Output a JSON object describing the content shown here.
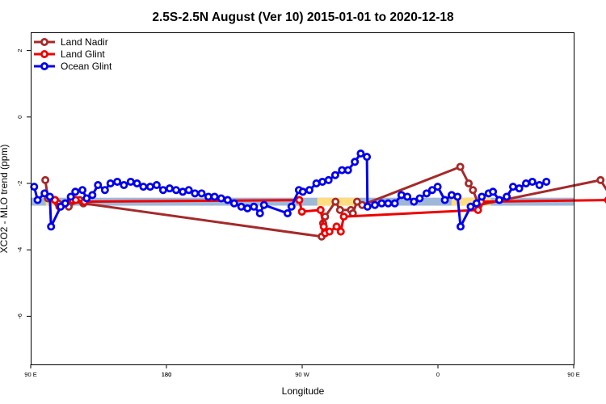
{
  "chart_data": {
    "type": "line",
    "title": "2.5S-2.5N August (Ver 10)   2015-01-01 to 2020-12-18",
    "xlabel": "Longitude",
    "ylabel": "XCO2 - MLO trend (ppm)",
    "xlim": [
      90,
      450
    ],
    "ylim": [
      -7.45,
      2.55
    ],
    "x_ticks": [
      {
        "value": 90,
        "label": "90 E"
      },
      {
        "value": 180,
        "label": "180"
      },
      {
        "value": 270,
        "label": "90 W"
      },
      {
        "value": 360,
        "label": "0"
      },
      {
        "value": 450,
        "label": "90 E"
      },
      {
        "value": 540,
        "label": "180"
      }
    ],
    "y_ticks": [
      {
        "value": 2,
        "label": "2"
      },
      {
        "value": 0,
        "label": "0"
      },
      {
        "value": -2,
        "label": "-2"
      },
      {
        "value": -4,
        "label": "-4"
      },
      {
        "value": -6,
        "label": "-6"
      }
    ],
    "grid": false,
    "legend_position": "top-left",
    "colors": {
      "land_band": "#ffdd80",
      "ocean_band": "#a0b8d8"
    },
    "band": {
      "y_center": -2.55,
      "y_half_height": 0.12
    },
    "land_segments": [
      [
        100,
        106
      ],
      [
        280,
        306
      ],
      [
        369,
        395
      ],
      [
        463,
        469
      ],
      [
        478,
        495
      ]
    ],
    "series": [
      {
        "name": "Land Nadir",
        "color": "#a52a2a",
        "points": [
          [
            99.7,
            -1.9
          ],
          [
            101.4,
            -2.45
          ],
          [
            106.1,
            -2.5
          ],
          [
            108.2,
            -2.6
          ],
          [
            115.2,
            -2.7
          ],
          [
            122.5,
            -2.5
          ],
          [
            124.9,
            -2.6
          ],
          [
            282.9,
            -3.6
          ],
          [
            283.9,
            -3.2
          ],
          [
            285.2,
            -3.0
          ],
          [
            292.1,
            -2.55
          ],
          [
            295.1,
            -2.8
          ],
          [
            302.3,
            -2.8
          ],
          [
            303.6,
            -2.9
          ],
          [
            306.4,
            -2.55
          ],
          [
            309.8,
            -2.65
          ],
          [
            374.8,
            -1.5
          ],
          [
            380.4,
            -2.0
          ],
          [
            383.2,
            -2.2
          ],
          [
            387.1,
            -2.65
          ],
          [
            467.8,
            -1.9
          ],
          [
            478.3,
            -2.65
          ],
          [
            482.9,
            -2.75
          ],
          [
            485.3,
            -2.5
          ],
          [
            490.2,
            -2.55
          ]
        ]
      },
      {
        "name": "Land Glint",
        "color": "#ee0000",
        "points": [
          [
            106.1,
            -2.5
          ],
          [
            109.0,
            -2.7
          ],
          [
            117.6,
            -2.5
          ],
          [
            119.9,
            -2.5
          ],
          [
            125.6,
            -2.55
          ],
          [
            268.1,
            -2.5
          ],
          [
            269.8,
            -2.85
          ],
          [
            282.2,
            -2.8
          ],
          [
            284.3,
            -3.3
          ],
          [
            285.2,
            -3.5
          ],
          [
            288.1,
            -3.45
          ],
          [
            292.8,
            -3.3
          ],
          [
            295.6,
            -3.45
          ],
          [
            297.6,
            -3.0
          ],
          [
            386.6,
            -2.8
          ],
          [
            388.6,
            -2.55
          ],
          [
            472.9,
            -2.5
          ],
          [
            475.1,
            -2.55
          ],
          [
            478.3,
            -2.55
          ],
          [
            481.5,
            -3.15
          ],
          [
            487.6,
            -2.5
          ],
          [
            490.2,
            -2.6
          ]
        ]
      },
      {
        "name": "Ocean Glint",
        "color": "#0000ee",
        "points": [
          [
            92.3,
            -2.1
          ],
          [
            94.6,
            -2.5
          ],
          [
            99.2,
            -2.3
          ],
          [
            102.7,
            -2.4
          ],
          [
            103.5,
            -3.3
          ],
          [
            109.9,
            -2.7
          ],
          [
            112.9,
            -2.6
          ],
          [
            116.6,
            -2.4
          ],
          [
            119.6,
            -2.25
          ],
          [
            124.3,
            -2.2
          ],
          [
            127.1,
            -2.45
          ],
          [
            130.9,
            -2.35
          ],
          [
            134.6,
            -2.05
          ],
          [
            139.2,
            -2.2
          ],
          [
            142.9,
            -2.0
          ],
          [
            147.4,
            -1.95
          ],
          [
            151.8,
            -2.05
          ],
          [
            156.3,
            -1.95
          ],
          [
            160.5,
            -2.0
          ],
          [
            164.7,
            -2.1
          ],
          [
            169.2,
            -2.1
          ],
          [
            173.5,
            -2.05
          ],
          [
            177.8,
            -2.2
          ],
          [
            182.1,
            -2.15
          ],
          [
            186.4,
            -2.2
          ],
          [
            190.8,
            -2.25
          ],
          [
            194.8,
            -2.2
          ],
          [
            198.9,
            -2.3
          ],
          [
            203.3,
            -2.3
          ],
          [
            207.8,
            -2.4
          ],
          [
            211.9,
            -2.4
          ],
          [
            216.3,
            -2.45
          ],
          [
            220.6,
            -2.5
          ],
          [
            224.9,
            -2.6
          ],
          [
            229.6,
            -2.7
          ],
          [
            233.7,
            -2.75
          ],
          [
            238.0,
            -2.7
          ],
          [
            242.0,
            -2.9
          ],
          [
            244.7,
            -2.65
          ],
          [
            260.3,
            -2.9
          ],
          [
            262.9,
            -2.7
          ],
          [
            267.8,
            -2.2
          ],
          [
            270.4,
            -2.25
          ],
          [
            274.8,
            -2.2
          ],
          [
            279.4,
            -2.0
          ],
          [
            283.4,
            -1.95
          ],
          [
            287.5,
            -1.9
          ],
          [
            291.9,
            -1.75
          ],
          [
            296.4,
            -1.6
          ],
          [
            300.4,
            -1.6
          ],
          [
            304.9,
            -1.35
          ],
          [
            308.8,
            -1.1
          ],
          [
            312.9,
            -1.2
          ],
          [
            313.3,
            -2.7
          ],
          [
            318.2,
            -2.65
          ],
          [
            322.7,
            -2.6
          ],
          [
            327.0,
            -2.6
          ],
          [
            331.4,
            -2.6
          ],
          [
            335.8,
            -2.35
          ],
          [
            339.7,
            -2.4
          ],
          [
            344.1,
            -2.55
          ],
          [
            347.9,
            -2.45
          ],
          [
            352.5,
            -2.3
          ],
          [
            356.2,
            -2.2
          ],
          [
            359.8,
            -2.1
          ],
          [
            364.6,
            -2.5
          ],
          [
            369.1,
            -2.35
          ],
          [
            373.0,
            -2.4
          ],
          [
            375.0,
            -3.3
          ],
          [
            381.7,
            -2.7
          ],
          [
            385.6,
            -2.6
          ],
          [
            389.1,
            -2.4
          ],
          [
            393.6,
            -2.3
          ],
          [
            396.5,
            -2.25
          ],
          [
            400.7,
            -2.5
          ],
          [
            405.6,
            -2.4
          ],
          [
            409.8,
            -2.1
          ],
          [
            413.9,
            -2.15
          ],
          [
            418.4,
            -2.0
          ],
          [
            422.6,
            -1.95
          ],
          [
            427.3,
            -2.05
          ],
          [
            431.9,
            -1.95
          ]
        ]
      }
    ]
  }
}
